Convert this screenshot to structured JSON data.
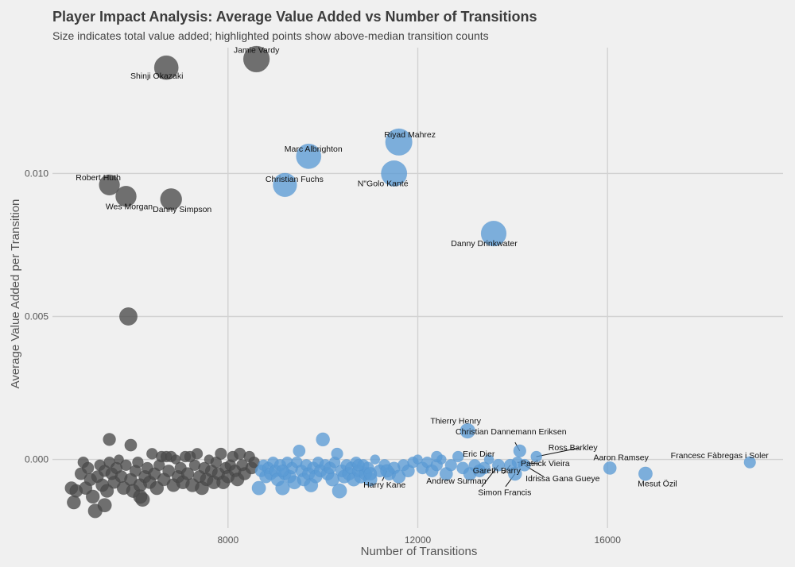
{
  "chart_data": {
    "type": "scatter",
    "title": "Player Impact Analysis: Average Value Added vs Number of Transitions",
    "subtitle": "Size indicates total value added; highlighted points show above-median transition counts",
    "xlabel": "Number of Transitions",
    "ylabel": "Average Value Added per Transition",
    "xlim": [
      4300,
      19700
    ],
    "ylim": [
      -0.0024,
      0.0144
    ],
    "x_ticks": [
      8000,
      12000,
      16000
    ],
    "x_tick_labels": [
      "8000",
      "12000",
      "16000"
    ],
    "y_ticks": [
      0.0,
      0.005,
      0.01
    ],
    "y_tick_labels": [
      "0.000",
      "0.005",
      "0.010"
    ],
    "colors": {
      "below_median": "#4a4a4a",
      "above_median": "#5b9bd5",
      "background": "#f0f0f0",
      "grid": "#d2d2d2"
    },
    "labeled_points": [
      {
        "name": "Jamie Vardy",
        "x": 8600,
        "y": 0.014,
        "total": 120,
        "group": "below"
      },
      {
        "name": "Shinji Okazaki",
        "x": 6700,
        "y": 0.0137,
        "total": 92,
        "group": "below"
      },
      {
        "name": "Robert Huth",
        "x": 5500,
        "y": 0.0096,
        "total": 53,
        "group": "below"
      },
      {
        "name": "Wes Morgan",
        "x": 5850,
        "y": 0.0092,
        "total": 54,
        "group": "below"
      },
      {
        "name": "Danny Simpson",
        "x": 6800,
        "y": 0.0091,
        "total": 62,
        "group": "below"
      },
      {
        "name": "Riyad Mahrez",
        "x": 11600,
        "y": 0.0111,
        "total": 129,
        "group": "above"
      },
      {
        "name": "Marc Albrighton",
        "x": 9700,
        "y": 0.0106,
        "total": 103,
        "group": "above"
      },
      {
        "name": "N\"Golo Kanté",
        "x": 11500,
        "y": 0.01,
        "total": 115,
        "group": "above"
      },
      {
        "name": "Christian Fuchs",
        "x": 9200,
        "y": 0.0096,
        "total": 88,
        "group": "above"
      },
      {
        "name": "Danny Drinkwater",
        "x": 13600,
        "y": 0.0079,
        "total": 107,
        "group": "above"
      },
      {
        "name": "Thierry Henry",
        "x": 13050,
        "y": 0.001,
        "total": 13,
        "group": "above"
      },
      {
        "name": "Christian Dannemann Eriksen",
        "x": 14150,
        "y": 0.0003,
        "total": 4,
        "group": "above"
      },
      {
        "name": "Eric Dier",
        "x": 12850,
        "y": 0.0001,
        "total": 1,
        "group": "above"
      },
      {
        "name": "Ross Barkley",
        "x": 14500,
        "y": 0.0001,
        "total": 1,
        "group": "above"
      },
      {
        "name": "Patrick Vieira",
        "x": 14100,
        "y": -0.0001,
        "total": 1,
        "group": "above"
      },
      {
        "name": "Aaron Ramsey",
        "x": 16050,
        "y": -0.0003,
        "total": 5,
        "group": "above"
      },
      {
        "name": "Francesc Fàbregas i Soler",
        "x": 19000,
        "y": -0.0001,
        "total": 2,
        "group": "above"
      },
      {
        "name": "Mesut Özil",
        "x": 16800,
        "y": -0.0005,
        "total": 8,
        "group": "above"
      },
      {
        "name": "Harry Kane",
        "x": 11350,
        "y": -0.0004,
        "total": 5,
        "group": "above"
      },
      {
        "name": "Gareth Barry",
        "x": 13950,
        "y": -0.0002,
        "total": 3,
        "group": "above"
      },
      {
        "name": "Andrew Surman",
        "x": 13700,
        "y": -0.0002,
        "total": 3,
        "group": "above"
      },
      {
        "name": "Simon Francis",
        "x": 14050,
        "y": -0.0005,
        "total": 7,
        "group": "above"
      },
      {
        "name": "Idrissa Gana Gueye",
        "x": 14250,
        "y": -0.0002,
        "total": 3,
        "group": "above"
      }
    ],
    "other_points": {
      "below_median": [
        {
          "x": 5500,
          "y": 0.0007,
          "total": 4
        },
        {
          "x": 5950,
          "y": 0.0005,
          "total": 3
        },
        {
          "x": 5900,
          "y": 0.005,
          "total": 30
        },
        {
          "x": 4700,
          "y": -0.001,
          "total": 5
        },
        {
          "x": 4750,
          "y": -0.0015,
          "total": 7
        },
        {
          "x": 4800,
          "y": -0.0011,
          "total": 5
        },
        {
          "x": 4900,
          "y": -0.0005,
          "total": 3
        },
        {
          "x": 4950,
          "y": -0.0001,
          "total": 1
        },
        {
          "x": 5000,
          "y": -0.001,
          "total": 5
        },
        {
          "x": 5050,
          "y": -0.0003,
          "total": 2
        },
        {
          "x": 5100,
          "y": -0.0007,
          "total": 4
        },
        {
          "x": 5150,
          "y": -0.0013,
          "total": 7
        },
        {
          "x": 5200,
          "y": -0.0018,
          "total": 9
        },
        {
          "x": 5250,
          "y": -0.0006,
          "total": 3
        },
        {
          "x": 5300,
          "y": -0.0002,
          "total": 1
        },
        {
          "x": 5350,
          "y": -0.0009,
          "total": 5
        },
        {
          "x": 5400,
          "y": -0.0004,
          "total": 2
        },
        {
          "x": 5450,
          "y": -0.0011,
          "total": 6
        },
        {
          "x": 5500,
          "y": -0.0001,
          "total": 1
        },
        {
          "x": 5550,
          "y": -0.0005,
          "total": 3
        },
        {
          "x": 5600,
          "y": -0.0008,
          "total": 4
        },
        {
          "x": 5650,
          "y": -0.0003,
          "total": 2
        },
        {
          "x": 5700,
          "y": 0.0,
          "total": 0
        },
        {
          "x": 5750,
          "y": -0.0006,
          "total": 3
        },
        {
          "x": 5800,
          "y": -0.001,
          "total": 6
        },
        {
          "x": 5850,
          "y": -0.0002,
          "total": 1
        },
        {
          "x": 5950,
          "y": -0.0007,
          "total": 4
        },
        {
          "x": 6000,
          "y": -0.0011,
          "total": 7
        },
        {
          "x": 6050,
          "y": -0.0004,
          "total": 2
        },
        {
          "x": 6100,
          "y": -0.0001,
          "total": 1
        },
        {
          "x": 6150,
          "y": -0.0009,
          "total": 6
        },
        {
          "x": 6200,
          "y": -0.0014,
          "total": 9
        },
        {
          "x": 6250,
          "y": -0.0006,
          "total": 4
        },
        {
          "x": 6300,
          "y": -0.0003,
          "total": 2
        },
        {
          "x": 6350,
          "y": -0.0008,
          "total": 5
        },
        {
          "x": 6400,
          "y": 0.0002,
          "total": 1
        },
        {
          "x": 6450,
          "y": -0.0005,
          "total": 3
        },
        {
          "x": 6500,
          "y": -0.001,
          "total": 7
        },
        {
          "x": 6550,
          "y": -0.0002,
          "total": 1
        },
        {
          "x": 6600,
          "y": 0.0001,
          "total": 1
        },
        {
          "x": 6650,
          "y": -0.0007,
          "total": 5
        },
        {
          "x": 6700,
          "y": 0.0001,
          "total": 1
        },
        {
          "x": 6750,
          "y": -0.0004,
          "total": 3
        },
        {
          "x": 6800,
          "y": 0.0001,
          "total": 1
        },
        {
          "x": 6850,
          "y": -0.0009,
          "total": 6
        },
        {
          "x": 6900,
          "y": 0.0,
          "total": 0
        },
        {
          "x": 6950,
          "y": -0.0006,
          "total": 4
        },
        {
          "x": 7000,
          "y": -0.0003,
          "total": 2
        },
        {
          "x": 7050,
          "y": -0.0008,
          "total": 6
        },
        {
          "x": 7100,
          "y": 0.0001,
          "total": 1
        },
        {
          "x": 7150,
          "y": -0.0005,
          "total": 4
        },
        {
          "x": 7250,
          "y": -0.0009,
          "total": 7
        },
        {
          "x": 7300,
          "y": -0.0002,
          "total": 1
        },
        {
          "x": 7350,
          "y": 0.0002,
          "total": 1
        },
        {
          "x": 7400,
          "y": -0.0006,
          "total": 4
        },
        {
          "x": 7450,
          "y": -0.001,
          "total": 7
        },
        {
          "x": 7500,
          "y": -0.0003,
          "total": 2
        },
        {
          "x": 7550,
          "y": -0.0007,
          "total": 5
        },
        {
          "x": 7600,
          "y": 0.0,
          "total": 0
        },
        {
          "x": 7650,
          "y": -0.0004,
          "total": 3
        },
        {
          "x": 7700,
          "y": -0.0008,
          "total": 6
        },
        {
          "x": 7750,
          "y": -0.0001,
          "total": 1
        },
        {
          "x": 7800,
          "y": -0.0005,
          "total": 4
        },
        {
          "x": 7850,
          "y": 0.0002,
          "total": 2
        },
        {
          "x": 7900,
          "y": -0.0008,
          "total": 6
        },
        {
          "x": 7950,
          "y": -0.0003,
          "total": 2
        },
        {
          "x": 8000,
          "y": -0.0006,
          "total": 5
        },
        {
          "x": 8050,
          "y": -0.0002,
          "total": 1
        },
        {
          "x": 8100,
          "y": 0.0001,
          "total": 1
        },
        {
          "x": 8150,
          "y": -0.0004,
          "total": 3
        },
        {
          "x": 8200,
          "y": -0.0007,
          "total": 6
        },
        {
          "x": 8250,
          "y": 0.0002,
          "total": 2
        },
        {
          "x": 8300,
          "y": -0.0002,
          "total": 2
        },
        {
          "x": 8350,
          "y": -0.0005,
          "total": 4
        },
        {
          "x": 8450,
          "y": 0.0001,
          "total": 1
        },
        {
          "x": 8500,
          "y": -0.0003,
          "total": 3
        },
        {
          "x": 8550,
          "y": -0.0001,
          "total": 1
        },
        {
          "x": 7200,
          "y": 0.0001,
          "total": 1
        },
        {
          "x": 6150,
          "y": -0.0013,
          "total": 8
        },
        {
          "x": 5400,
          "y": -0.0016,
          "total": 8
        }
      ],
      "above_median": [
        {
          "x": 8650,
          "y": -0.001,
          "total": 8
        },
        {
          "x": 8700,
          "y": -0.0004,
          "total": 3
        },
        {
          "x": 8750,
          "y": -0.0002,
          "total": 1
        },
        {
          "x": 8800,
          "y": -0.0006,
          "total": 5
        },
        {
          "x": 8850,
          "y": -0.0003,
          "total": 2
        },
        {
          "x": 8900,
          "y": -0.0005,
          "total": 4
        },
        {
          "x": 8950,
          "y": -0.0001,
          "total": 1
        },
        {
          "x": 9000,
          "y": -0.0004,
          "total": 3
        },
        {
          "x": 9050,
          "y": -0.0007,
          "total": 6
        },
        {
          "x": 9100,
          "y": -0.0002,
          "total": 2
        },
        {
          "x": 9150,
          "y": -0.001,
          "total": 9
        },
        {
          "x": 9200,
          "y": -0.0005,
          "total": 4
        },
        {
          "x": 9250,
          "y": -0.0001,
          "total": 1
        },
        {
          "x": 9300,
          "y": -0.0006,
          "total": 5
        },
        {
          "x": 9350,
          "y": -0.0003,
          "total": 2
        },
        {
          "x": 9400,
          "y": -0.0008,
          "total": 7
        },
        {
          "x": 9450,
          "y": -0.0001,
          "total": 1
        },
        {
          "x": 9500,
          "y": 0.0003,
          "total": 3
        },
        {
          "x": 9550,
          "y": -0.0004,
          "total": 3
        },
        {
          "x": 9600,
          "y": -0.0007,
          "total": 6
        },
        {
          "x": 9650,
          "y": -0.0002,
          "total": 2
        },
        {
          "x": 9700,
          "y": -0.0005,
          "total": 4
        },
        {
          "x": 9750,
          "y": -0.0009,
          "total": 8
        },
        {
          "x": 9800,
          "y": -0.0003,
          "total": 3
        },
        {
          "x": 9850,
          "y": -0.0006,
          "total": 5
        },
        {
          "x": 9900,
          "y": -0.0001,
          "total": 1
        },
        {
          "x": 9950,
          "y": -0.0004,
          "total": 4
        },
        {
          "x": 10000,
          "y": 0.0007,
          "total": 7
        },
        {
          "x": 10050,
          "y": -0.0002,
          "total": 2
        },
        {
          "x": 10100,
          "y": -0.0005,
          "total": 5
        },
        {
          "x": 10150,
          "y": -0.0003,
          "total": 3
        },
        {
          "x": 10200,
          "y": -0.0007,
          "total": 7
        },
        {
          "x": 10250,
          "y": -0.0001,
          "total": 1
        },
        {
          "x": 10300,
          "y": 0.0002,
          "total": 2
        },
        {
          "x": 10350,
          "y": -0.0011,
          "total": 11
        },
        {
          "x": 10400,
          "y": -0.0004,
          "total": 4
        },
        {
          "x": 10450,
          "y": -0.0006,
          "total": 6
        },
        {
          "x": 10500,
          "y": -0.0002,
          "total": 2
        },
        {
          "x": 10550,
          "y": -0.0005,
          "total": 5
        },
        {
          "x": 10600,
          "y": -0.0003,
          "total": 3
        },
        {
          "x": 10650,
          "y": -0.0007,
          "total": 7
        },
        {
          "x": 10700,
          "y": -0.0001,
          "total": 1
        },
        {
          "x": 10750,
          "y": -0.0004,
          "total": 4
        },
        {
          "x": 10800,
          "y": -0.0006,
          "total": 6
        },
        {
          "x": 10850,
          "y": -0.0002,
          "total": 2
        },
        {
          "x": 10900,
          "y": -0.0005,
          "total": 5
        },
        {
          "x": 10950,
          "y": -0.0003,
          "total": 3
        },
        {
          "x": 11000,
          "y": -0.0007,
          "total": 7
        },
        {
          "x": 11100,
          "y": 0.0,
          "total": 0
        },
        {
          "x": 11200,
          "y": -0.0004,
          "total": 4
        },
        {
          "x": 11300,
          "y": -0.0002,
          "total": 2
        },
        {
          "x": 11400,
          "y": -0.0005,
          "total": 5
        },
        {
          "x": 11500,
          "y": -0.0003,
          "total": 3
        },
        {
          "x": 11600,
          "y": -0.0006,
          "total": 6
        },
        {
          "x": 11700,
          "y": -0.0002,
          "total": 2
        },
        {
          "x": 11800,
          "y": -0.0004,
          "total": 4
        },
        {
          "x": 11900,
          "y": -0.0001,
          "total": 1
        },
        {
          "x": 12000,
          "y": 0.0,
          "total": 0
        },
        {
          "x": 12100,
          "y": -0.0003,
          "total": 3
        },
        {
          "x": 12200,
          "y": -0.0001,
          "total": 1
        },
        {
          "x": 12300,
          "y": -0.0004,
          "total": 4
        },
        {
          "x": 12400,
          "y": -0.0002,
          "total": 2
        },
        {
          "x": 12500,
          "y": 0.0,
          "total": 0
        },
        {
          "x": 12600,
          "y": -0.0005,
          "total": 5
        },
        {
          "x": 12700,
          "y": -0.0002,
          "total": 2
        },
        {
          "x": 12950,
          "y": -0.0003,
          "total": 3
        },
        {
          "x": 13100,
          "y": -0.0005,
          "total": 5
        },
        {
          "x": 13200,
          "y": -0.0002,
          "total": 2
        },
        {
          "x": 13300,
          "y": -0.0004,
          "total": 4
        },
        {
          "x": 13400,
          "y": -0.0003,
          "total": 3
        },
        {
          "x": 13500,
          "y": 0.0,
          "total": 0
        },
        {
          "x": 11000,
          "y": -0.0005,
          "total": 5
        },
        {
          "x": 10750,
          "y": -0.0002,
          "total": 2
        },
        {
          "x": 9150,
          "y": -0.0004,
          "total": 3
        },
        {
          "x": 12400,
          "y": 0.0001,
          "total": 1
        }
      ]
    },
    "leader_lines": [
      {
        "name": "Harry Kane",
        "from": [
          11350,
          -0.0004
        ],
        "to": [
          11250,
          -0.00075
        ]
      },
      {
        "name": "Andrew Surman",
        "from": [
          13700,
          -0.0002
        ],
        "to": [
          13350,
          -0.00095
        ]
      },
      {
        "name": "Simon Francis",
        "from": [
          14050,
          -0.0005
        ],
        "to": [
          13850,
          -0.00095
        ]
      },
      {
        "name": "Gareth Barry",
        "from": [
          13950,
          -0.0002
        ],
        "to": [
          13800,
          -0.0005
        ]
      },
      {
        "name": "Ross Barkley",
        "from": [
          14500,
          0.0001
        ],
        "to": [
          15400,
          0.0004
        ]
      },
      {
        "name": "Patrick Vieira",
        "from": [
          14100,
          -0.0001
        ],
        "to": [
          14550,
          -0.00015
        ]
      },
      {
        "name": "Idrissa Gana Gueye",
        "from": [
          14250,
          -0.0002
        ],
        "to": [
          14650,
          -0.0006
        ]
      },
      {
        "name": "Christian Dannemann Eriksen",
        "from": [
          14150,
          0.0003
        ],
        "to": [
          14050,
          0.0006
        ]
      }
    ]
  }
}
